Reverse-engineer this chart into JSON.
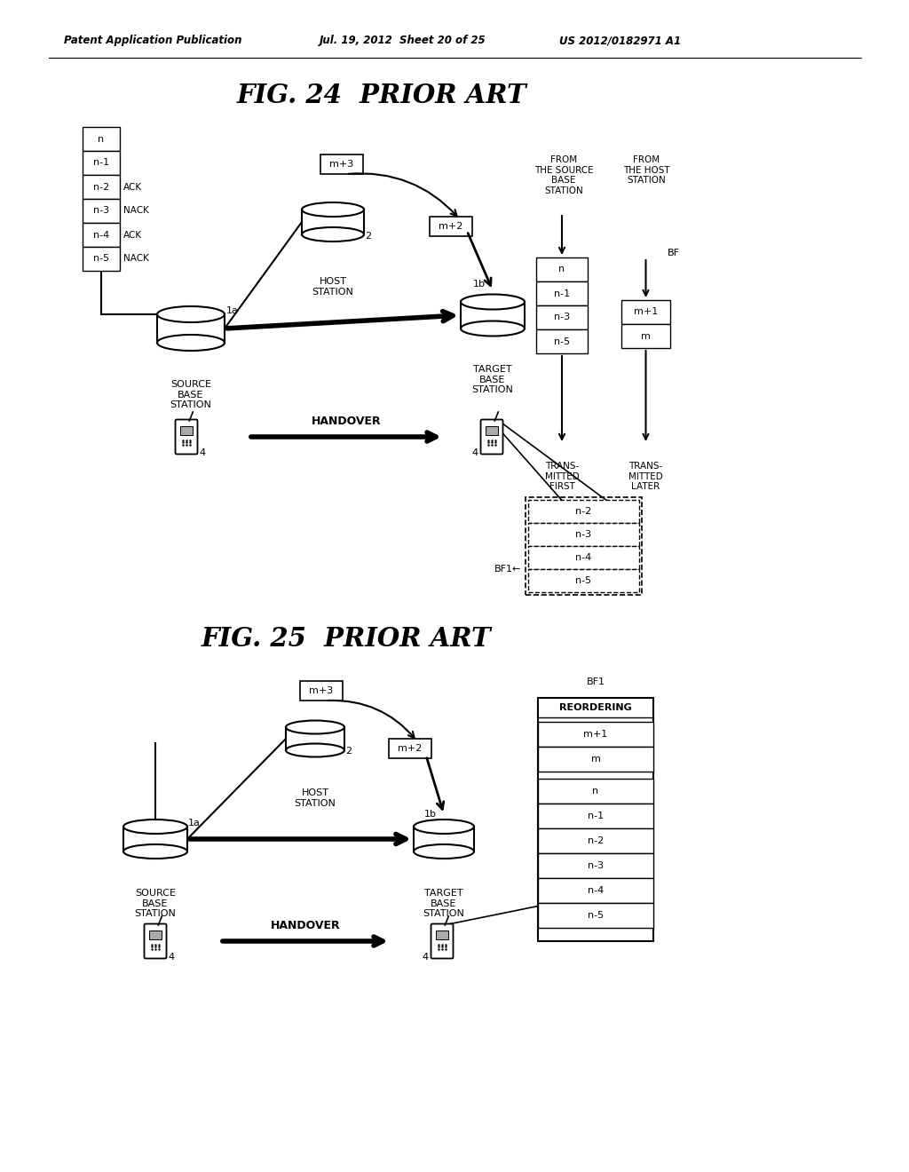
{
  "bg_color": "#ffffff",
  "header_text": "Patent Application Publication",
  "header_date": "Jul. 19, 2012  Sheet 20 of 25",
  "header_patent": "US 2012/0182971 A1",
  "fig24_title": "FIG. 24  PRIOR ART",
  "fig25_title": "FIG. 25  PRIOR ART",
  "text_color": "#000000"
}
